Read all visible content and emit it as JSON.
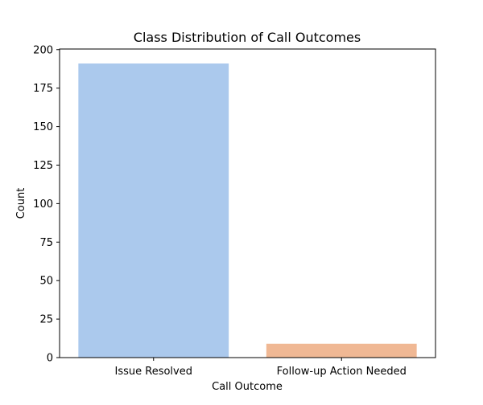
{
  "chart_data": {
    "type": "bar",
    "title": "Class Distribution of Call Outcomes",
    "xlabel": "Call Outcome",
    "ylabel": "Count",
    "categories": [
      "Issue Resolved",
      "Follow-up Action Needed"
    ],
    "values": [
      191,
      9
    ],
    "colors": [
      "#abc9ed",
      "#f0b894"
    ],
    "ylim": [
      0,
      200
    ],
    "yticks": [
      0,
      25,
      50,
      75,
      100,
      125,
      150,
      175,
      200
    ],
    "grid": false
  }
}
